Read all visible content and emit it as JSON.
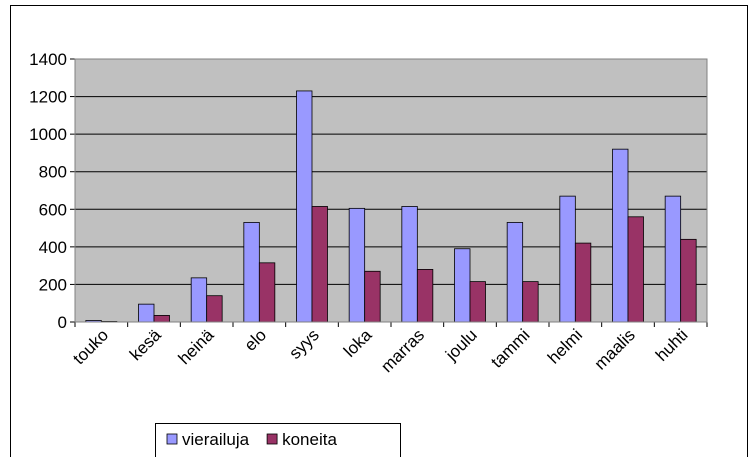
{
  "chart_data": {
    "type": "bar",
    "categories": [
      "touko",
      "kesä",
      "heinä",
      "elo",
      "syys",
      "loka",
      "marras",
      "joulu",
      "tammi",
      "helmi",
      "maalis",
      "huhti"
    ],
    "series": [
      {
        "name": "vierailuja",
        "color": "#9999ff",
        "values": [
          8,
          95,
          235,
          530,
          1230,
          605,
          615,
          390,
          530,
          670,
          920,
          670
        ]
      },
      {
        "name": "koneita",
        "color": "#993366",
        "values": [
          3,
          35,
          140,
          315,
          615,
          270,
          280,
          215,
          215,
          420,
          560,
          440
        ]
      }
    ],
    "ylim": [
      0,
      1400
    ],
    "yticks": [
      0,
      200,
      400,
      600,
      800,
      1000,
      1200,
      1400
    ],
    "grid": true,
    "plot_background": "#c0c0c0",
    "legend": "bottom"
  }
}
